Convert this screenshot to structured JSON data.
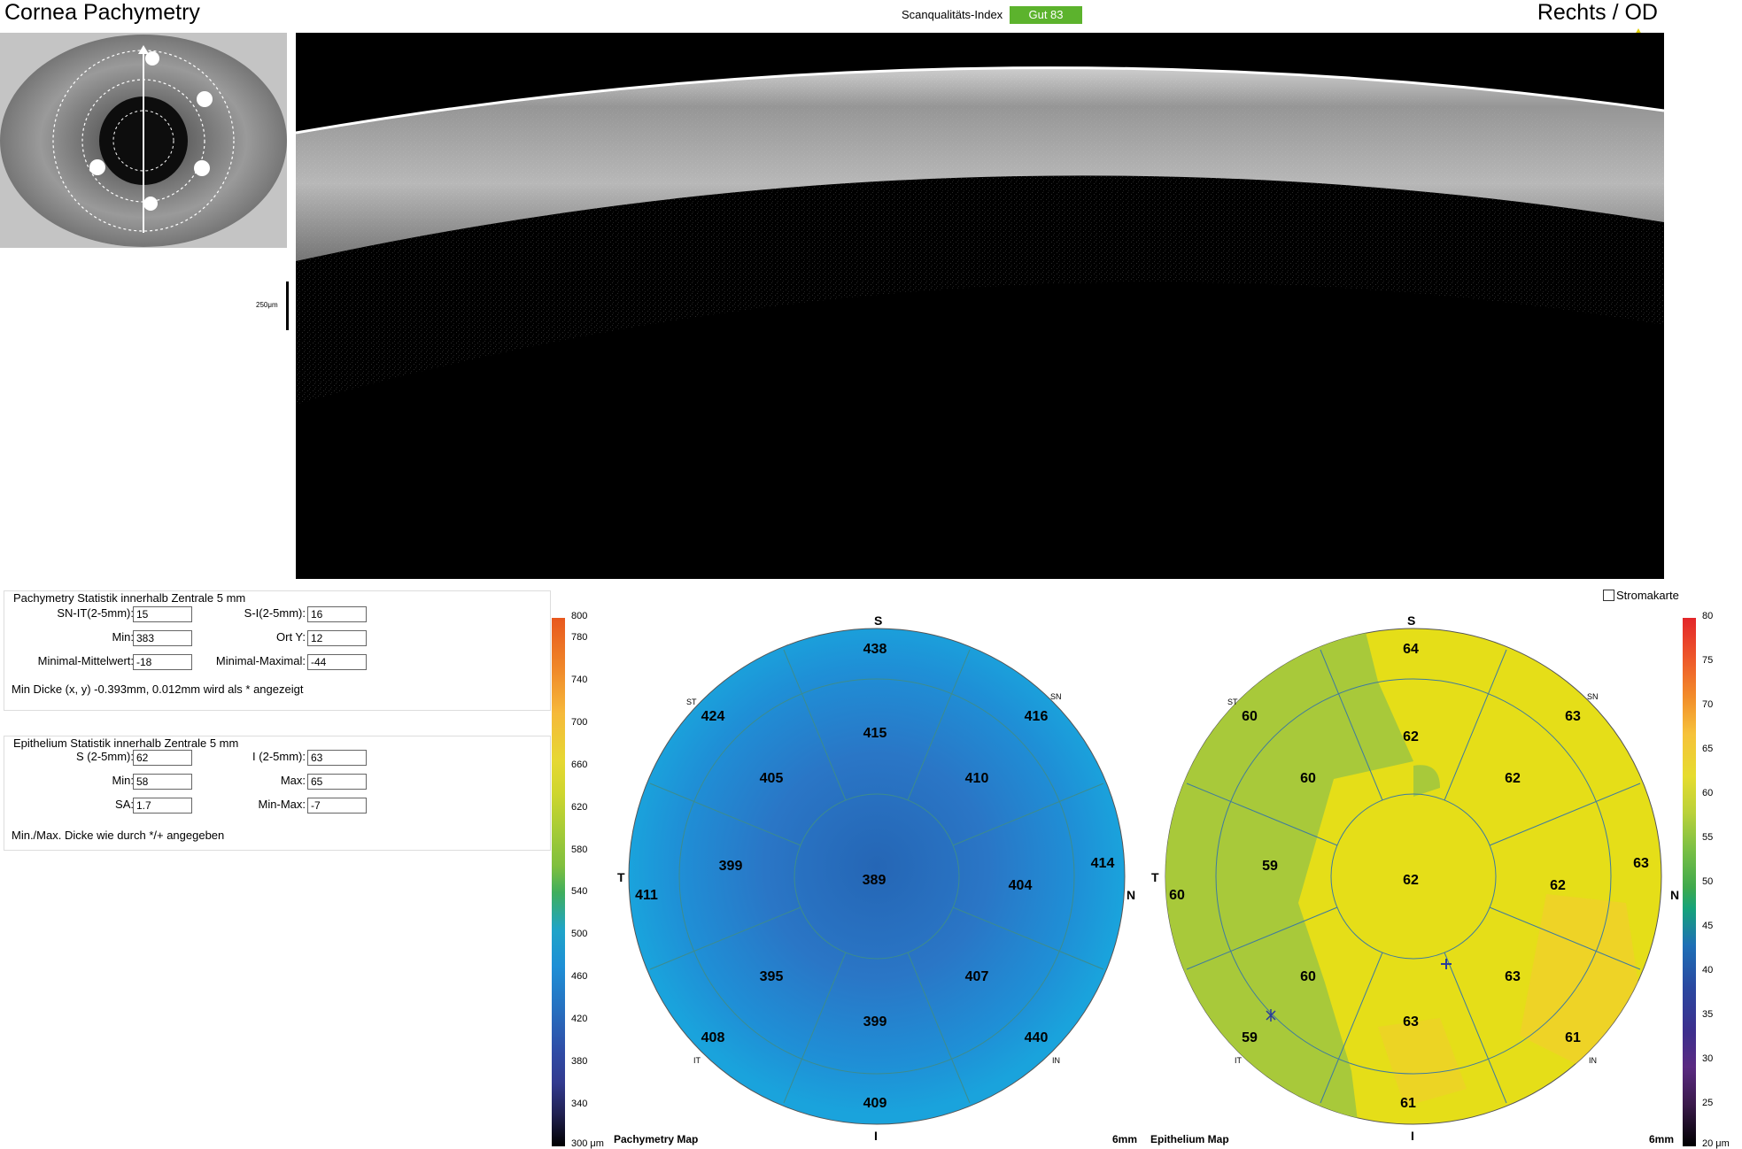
{
  "header": {
    "title": "Cornea Pachymetry",
    "eye": "Rechts / OD",
    "scan_quality_label": "Scanqualitäts-Index",
    "scan_quality_value": "Gut  83",
    "scan_quality_color": "#5cb32d"
  },
  "scale": {
    "label": "250μm"
  },
  "pachymetry_stats": {
    "title": "Pachymetry Statistik innerhalb Zentrale 5 mm",
    "sn_it_label": "SN-IT(2-5mm):",
    "sn_it_value": "15",
    "s_i_label": "S-I(2-5mm):",
    "s_i_value": "16",
    "min_label": "Min:",
    "min_value": "383",
    "ort_y_label": "Ort Y:",
    "ort_y_value": "12",
    "min_mean_label": "Minimal-Mittelwert:",
    "min_mean_value": "-18",
    "min_max_label": "Minimal-Maximal:",
    "min_max_value": "-44",
    "note": "Min Dicke (x, y) -0.393mm, 0.012mm wird als * angezeigt"
  },
  "epithelium_stats": {
    "title": "Epithelium Statistik innerhalb Zentrale 5 mm",
    "s_label": "S (2-5mm):",
    "s_value": "62",
    "i_label": "I (2-5mm):",
    "i_value": "63",
    "min_label": "Min:",
    "min_value": "58",
    "max_label": "Max:",
    "max_value": "65",
    "sa_label": "SA:",
    "sa_value": "1.7",
    "minmax_label": "Min-Max:",
    "minmax_value": "-7",
    "note": "Min./Max. Dicke wie durch */+ angegeben"
  },
  "stroma_toggle": {
    "label": "Stromakarte",
    "checked": false
  },
  "pachymetry_map": {
    "title": "Pachymetry Map",
    "size_label": "6mm",
    "colorbar_ticks": [
      "800",
      "780",
      "740",
      "700",
      "660",
      "620",
      "580",
      "540",
      "500",
      "460",
      "420",
      "380",
      "340",
      "300 μm"
    ],
    "orientation": {
      "S": "S",
      "I": "I",
      "T": "T",
      "N": "N",
      "ST": "ST",
      "SN": "SN",
      "IT": "IT",
      "IN": "IN"
    },
    "center": "389",
    "inner_ring": {
      "S": "415",
      "SN": "410",
      "N": "404",
      "IN": "407",
      "I": "399",
      "IT": "395",
      "T": "399",
      "ST": "405"
    },
    "outer_ring": {
      "S": "438",
      "SN": "416",
      "N": "414",
      "IN": "440",
      "I": "409",
      "IT": "408",
      "T": "411",
      "ST": "424"
    }
  },
  "epithelium_map": {
    "title": "Epithelium Map",
    "size_label": "6mm",
    "colorbar_ticks": [
      "80",
      "75",
      "70",
      "65",
      "60",
      "55",
      "50",
      "45",
      "40",
      "35",
      "30",
      "25",
      "20 μm"
    ],
    "orientation": {
      "S": "S",
      "I": "I",
      "T": "T",
      "N": "N",
      "ST": "ST",
      "SN": "SN",
      "IT": "IT",
      "IN": "IN"
    },
    "center": "62",
    "inner_ring": {
      "S": "62",
      "SN": "62",
      "N": "62",
      "IN": "63",
      "I": "63",
      "IT": "60",
      "T": "59",
      "ST": "60"
    },
    "outer_ring": {
      "S": "64",
      "SN": "63",
      "N": "63",
      "IN": "61",
      "I": "61",
      "IT": "59",
      "T": "60",
      "ST": "60"
    }
  }
}
